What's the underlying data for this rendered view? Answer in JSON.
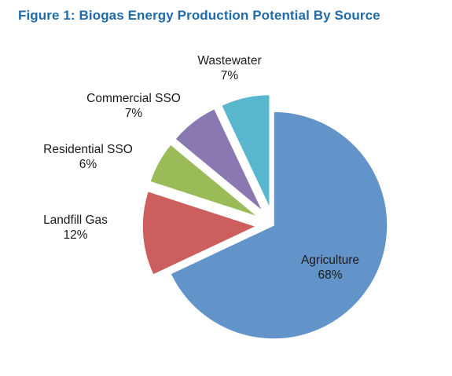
{
  "title": "Figure 1:  Biogas Energy Production Potential By Source",
  "chart_data": {
    "type": "pie",
    "title": "Figure 1:  Biogas Energy Production Potential By Source",
    "slices": [
      {
        "name": "Agriculture",
        "value": 68,
        "label": "68%",
        "color": "#6294c9",
        "exploded": false
      },
      {
        "name": "Landfill Gas",
        "value": 12,
        "label": "12%",
        "color": "#cc5f5d",
        "exploded": true
      },
      {
        "name": "Residential SSO",
        "value": 6,
        "label": "6%",
        "color": "#9bbb59",
        "exploded": true
      },
      {
        "name": "Commercial SSO",
        "value": 7,
        "label": "7%",
        "color": "#8a79b0",
        "exploded": true
      },
      {
        "name": "Wastewater",
        "value": 7,
        "label": "7%",
        "color": "#58b7cc",
        "exploded": true
      }
    ]
  }
}
